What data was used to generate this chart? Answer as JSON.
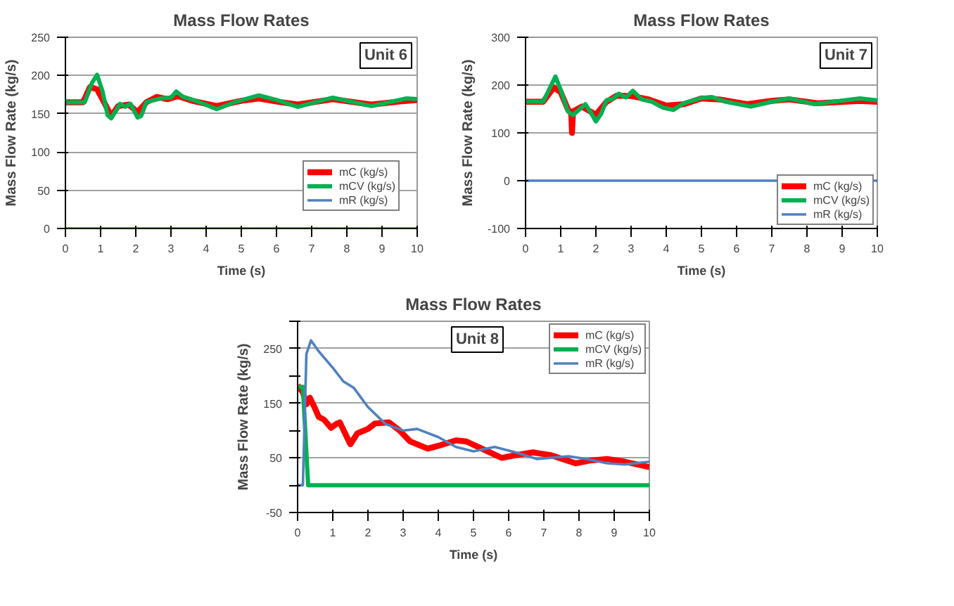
{
  "chart_data": [
    {
      "type": "line",
      "title": "Mass Flow Rates",
      "xlabel": "Time (s)",
      "ylabel": "Mass Flow Rate (kg/s)",
      "annotations": [
        "Unit 6"
      ],
      "xlim": [
        0,
        10
      ],
      "xticks": [
        0,
        1,
        2,
        3,
        4,
        5,
        6,
        7,
        8,
        9,
        10
      ],
      "ylim": [
        0,
        250
      ],
      "yticks": [
        0,
        50,
        100,
        150,
        200,
        250
      ],
      "grid": "y",
      "legend": "bottom right",
      "series": [
        {
          "name": "mC (kg/s)",
          "color": "#ff0000",
          "x": [
            0,
            0.5,
            0.7,
            0.9,
            1.1,
            1.3,
            1.5,
            1.8,
            2.05,
            2.3,
            2.6,
            2.9,
            3.2,
            3.6,
            4.3,
            5,
            5.5,
            6,
            6.6,
            7.6,
            8.7,
            9.5,
            10
          ],
          "values": [
            165,
            165,
            185,
            182,
            165,
            147,
            160,
            162,
            152,
            165,
            172,
            169,
            173,
            167,
            160,
            167,
            170,
            166,
            162,
            169,
            162,
            166,
            168
          ]
        },
        {
          "name": "mCV (kg/s)",
          "color": "#00b050",
          "x": [
            0,
            0.55,
            0.75,
            0.9,
            1.05,
            1.2,
            1.3,
            1.45,
            1.55,
            1.7,
            1.85,
            2.05,
            2.15,
            2.3,
            2.7,
            3.0,
            3.15,
            3.35,
            3.7,
            4.3,
            4.8,
            5.5,
            6,
            6.6,
            7.6,
            8.7,
            9.7,
            10
          ],
          "values": [
            165,
            165,
            190,
            201,
            180,
            148,
            144,
            155,
            163,
            159,
            163,
            145,
            147,
            165,
            170,
            171,
            179,
            172,
            167,
            156,
            165,
            174,
            168,
            159,
            171,
            160,
            170,
            169
          ]
        },
        {
          "name": "mR (kg/s)",
          "color": "#4f81bd",
          "x": [
            0,
            10
          ],
          "values": [
            0,
            0
          ]
        }
      ]
    },
    {
      "type": "line",
      "title": "Mass Flow Rates",
      "xlabel": "Time (s)",
      "ylabel": "Mass Flow Rate (kg/s)",
      "annotations": [
        "Unit 7"
      ],
      "xlim": [
        0,
        10
      ],
      "xticks": [
        0,
        1,
        2,
        3,
        4,
        5,
        6,
        7,
        8,
        9,
        10
      ],
      "ylim": [
        -100,
        300
      ],
      "yticks": [
        -100,
        0,
        100,
        200,
        300
      ],
      "grid": "y",
      "legend": "bottom right",
      "series": [
        {
          "name": "mC (kg/s)",
          "color": "#ff0000",
          "x": [
            0,
            0.5,
            0.8,
            1.0,
            1.2,
            1.3,
            1.32,
            1.35,
            1.6,
            2.0,
            2.3,
            2.6,
            3.0,
            3.5,
            4,
            4.5,
            5,
            5.5,
            6.3,
            7,
            7.5,
            8.3,
            9.5,
            10
          ],
          "values": [
            165,
            165,
            195,
            185,
            150,
            140,
            100,
            145,
            155,
            138,
            165,
            178,
            177,
            170,
            157,
            160,
            172,
            170,
            160,
            167,
            170,
            162,
            167,
            165
          ]
        },
        {
          "name": "mCV (kg/s)",
          "color": "#00b050",
          "x": [
            0,
            0.5,
            0.7,
            0.85,
            1.0,
            1.2,
            1.35,
            1.5,
            1.7,
            1.85,
            2.0,
            2.15,
            2.3,
            2.5,
            2.65,
            2.85,
            3.05,
            3.3,
            3.6,
            3.9,
            4.2,
            4.5,
            5,
            5.3,
            5.7,
            6.4,
            7.0,
            7.5,
            8.2,
            9.5,
            10
          ],
          "values": [
            165,
            165,
            195,
            218,
            190,
            145,
            137,
            147,
            160,
            143,
            124,
            140,
            168,
            172,
            182,
            174,
            188,
            170,
            165,
            153,
            148,
            162,
            173,
            175,
            165,
            155,
            165,
            172,
            160,
            172,
            168
          ]
        },
        {
          "name": "mR (kg/s)",
          "color": "#4f81bd",
          "x": [
            0,
            10
          ],
          "values": [
            0,
            0
          ]
        }
      ]
    },
    {
      "type": "line",
      "title": "Mass Flow Rates",
      "xlabel": "Time (s)",
      "ylabel": "Mass Flow Rate (kg/s)",
      "annotations": [
        "Unit 8"
      ],
      "xlim": [
        0,
        10
      ],
      "xticks": [
        0,
        1,
        2,
        3,
        4,
        5,
        6,
        7,
        8,
        9,
        10
      ],
      "ylim": [
        -50,
        300
      ],
      "yticks": [
        -50,
        {
          "value": 0,
          "label": null
        },
        50,
        {
          "value": 100,
          "label": null
        },
        150,
        {
          "value": 200,
          "label": null
        },
        250,
        {
          "value": 300,
          "label": null
        }
      ],
      "grid": "y",
      "legend": "top right",
      "series": [
        {
          "name": "mC (kg/s)",
          "color": "#ff0000",
          "x": [
            0,
            0.15,
            0.25,
            0.35,
            0.5,
            0.6,
            0.75,
            0.95,
            1.1,
            1.2,
            1.35,
            1.5,
            1.7,
            2.0,
            2.2,
            2.6,
            2.9,
            3.2,
            3.7,
            4.0,
            4.5,
            4.8,
            5.3,
            5.8,
            6.2,
            6.7,
            7.2,
            7.9,
            8.3,
            8.8,
            9.3,
            10
          ],
          "values": [
            183,
            170,
            148,
            160,
            140,
            125,
            120,
            105,
            112,
            115,
            95,
            75,
            95,
            103,
            113,
            115,
            100,
            80,
            67,
            72,
            82,
            80,
            65,
            50,
            55,
            60,
            55,
            40,
            45,
            48,
            43,
            33
          ]
        },
        {
          "name": "mCV (kg/s)",
          "color": "#00b050",
          "x": [
            0,
            0.15,
            0.3,
            10
          ],
          "values": [
            180,
            180,
            0,
            0
          ]
        },
        {
          "name": "mR (kg/s)",
          "color": "#4f81bd",
          "x": [
            0,
            0.15,
            0.25,
            0.38,
            0.6,
            1.0,
            1.3,
            1.6,
            2.0,
            2.5,
            3.0,
            3.4,
            4.0,
            4.5,
            5.0,
            5.6,
            6.2,
            6.8,
            7.7,
            8.2,
            8.8,
            9.3,
            10
          ],
          "values": [
            0,
            0,
            240,
            265,
            245,
            215,
            190,
            178,
            143,
            112,
            100,
            103,
            88,
            70,
            62,
            70,
            60,
            48,
            53,
            48,
            40,
            38,
            43
          ]
        }
      ]
    }
  ]
}
